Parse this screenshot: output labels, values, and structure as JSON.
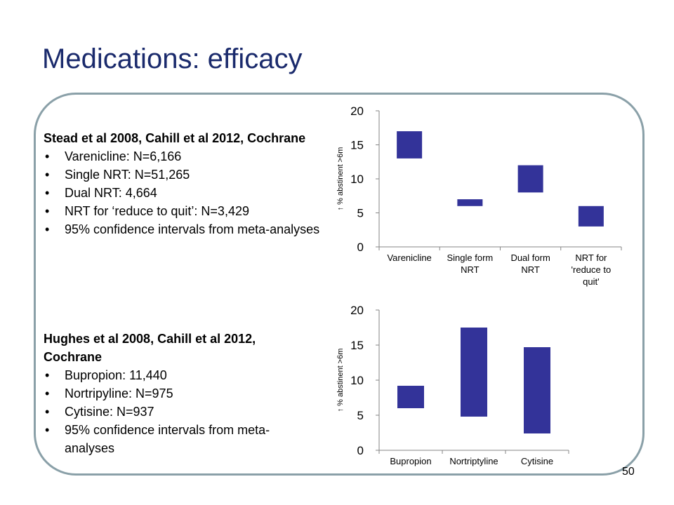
{
  "slide": {
    "title": "Medications: efficacy",
    "page_number": "50"
  },
  "block1": {
    "heading": "Stead et al 2008, Cahill et al 2012, Cochrane",
    "bullets": [
      "Varenicline: N=6,166",
      "Single NRT: N=51,265",
      "Dual NRT: 4,664",
      "NRT for ‘reduce to quit’: N=3,429",
      "95% confidence intervals from meta-analyses"
    ]
  },
  "block2": {
    "heading": "Hughes et al 2008, Cahill et al 2012, Cochrane",
    "bullets": [
      "Bupropion: 11,440",
      "Nortripyline: N=975",
      "Cytisine: N=937",
      "95% confidence intervals from meta-analyses"
    ]
  },
  "chart_data": [
    {
      "type": "bar",
      "title": "",
      "ylabel": "↑ % abstinent >6m",
      "ylim": [
        0,
        20
      ],
      "yticks": [
        0,
        5,
        10,
        15,
        20
      ],
      "categories": [
        [
          "Varenicline"
        ],
        [
          "Single form",
          "NRT"
        ],
        [
          "Dual form",
          "NRT"
        ],
        [
          "NRT for",
          "'reduce to",
          "quit'"
        ]
      ],
      "ranges": [
        [
          13,
          17
        ],
        [
          6,
          7
        ],
        [
          8,
          12
        ],
        [
          3,
          6
        ]
      ],
      "color": "#333399",
      "grid": false
    },
    {
      "type": "bar",
      "title": "",
      "ylabel": "↑ % abstinent >6m",
      "ylim": [
        0,
        20
      ],
      "yticks": [
        0,
        5,
        10,
        15,
        20
      ],
      "categories": [
        [
          "Bupropion"
        ],
        [
          "Nortriptyline"
        ],
        [
          "Cytisine"
        ]
      ],
      "ranges": [
        [
          6,
          9.2
        ],
        [
          4.8,
          17.5
        ],
        [
          2.4,
          14.7
        ]
      ],
      "color": "#333399",
      "grid": false
    }
  ]
}
